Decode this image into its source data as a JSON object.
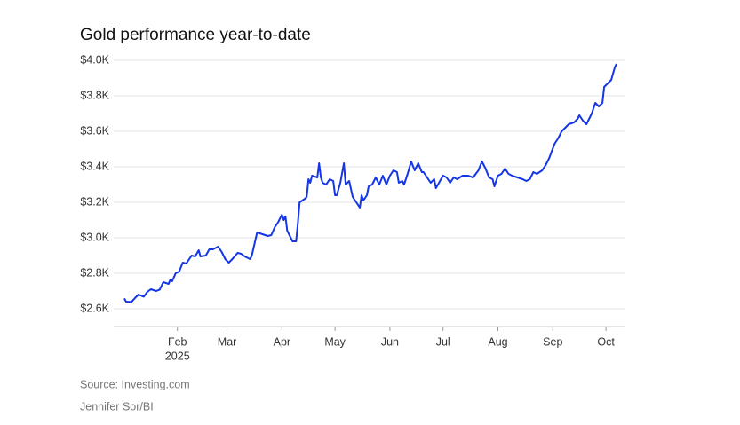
{
  "chart_data": {
    "type": "line",
    "title": "Gold performance year-to-date",
    "source": "Source: Investing.com",
    "credit": "Jennifer Sor/BI",
    "year": "2025",
    "x": [
      2,
      3,
      6,
      8,
      10,
      13,
      15,
      17,
      20,
      22,
      24,
      27,
      28,
      29,
      31,
      33,
      35,
      37,
      38,
      40,
      42,
      44,
      45,
      48,
      50,
      52,
      55,
      57,
      59,
      61,
      63,
      66,
      68,
      70,
      73,
      74,
      77,
      80,
      83,
      85,
      87,
      89,
      90,
      91,
      92,
      93,
      94,
      96,
      97,
      99,
      100,
      101,
      104,
      105,
      106,
      107,
      108,
      111,
      112,
      113,
      114,
      116,
      118,
      120,
      121,
      122,
      124,
      126,
      127,
      129,
      131,
      133,
      135,
      136,
      137,
      139,
      140,
      142,
      144,
      146,
      148,
      150,
      152,
      154,
      156,
      157,
      159,
      160,
      162,
      164,
      166,
      168,
      170,
      171,
      173,
      175,
      177,
      178,
      182,
      184,
      186,
      188,
      190,
      193,
      196,
      199,
      202,
      204,
      206,
      208,
      210,
      211,
      213,
      215,
      217,
      219,
      221,
      224,
      227,
      229,
      231,
      233,
      235,
      238,
      240,
      242,
      245,
      247,
      249,
      251,
      253,
      256,
      258,
      259,
      261,
      263,
      266,
      268,
      270,
      272,
      273,
      275,
      277,
      279,
      280
    ],
    "series": [
      {
        "name": "Gold",
        "color": "#1436e6",
        "values": [
          2658,
          2640,
          2638,
          2660,
          2680,
          2668,
          2695,
          2710,
          2700,
          2708,
          2750,
          2740,
          2765,
          2755,
          2800,
          2810,
          2860,
          2855,
          2870,
          2900,
          2895,
          2930,
          2895,
          2900,
          2935,
          2935,
          2950,
          2920,
          2880,
          2860,
          2880,
          2915,
          2910,
          2895,
          2880,
          2900,
          3030,
          3020,
          3010,
          3015,
          3060,
          3090,
          3110,
          3130,
          3100,
          3120,
          3040,
          3000,
          2980,
          2980,
          3080,
          3200,
          3220,
          3230,
          3330,
          3310,
          3350,
          3340,
          3420,
          3340,
          3310,
          3300,
          3330,
          3320,
          3240,
          3240,
          3310,
          3420,
          3300,
          3320,
          3230,
          3200,
          3170,
          3240,
          3210,
          3240,
          3290,
          3300,
          3340,
          3300,
          3350,
          3300,
          3350,
          3380,
          3370,
          3310,
          3320,
          3300,
          3360,
          3430,
          3380,
          3420,
          3370,
          3370,
          3340,
          3310,
          3330,
          3280,
          3350,
          3340,
          3310,
          3340,
          3330,
          3350,
          3350,
          3340,
          3380,
          3430,
          3390,
          3340,
          3330,
          3290,
          3350,
          3360,
          3390,
          3360,
          3350,
          3340,
          3330,
          3320,
          3330,
          3370,
          3360,
          3380,
          3410,
          3450,
          3530,
          3560,
          3600,
          3620,
          3640,
          3650,
          3670,
          3690,
          3660,
          3640,
          3700,
          3760,
          3740,
          3760,
          3850,
          3870,
          3890,
          3960,
          3980
        ]
      }
    ],
    "xlim": [
      -4,
      285
    ],
    "xticks": [
      {
        "value": 32,
        "label": "Feb"
      },
      {
        "value": 60,
        "label": "Mar"
      },
      {
        "value": 91,
        "label": "Apr"
      },
      {
        "value": 121,
        "label": "May"
      },
      {
        "value": 152,
        "label": "Jun"
      },
      {
        "value": 182,
        "label": "Jul"
      },
      {
        "value": 213,
        "label": "Aug"
      },
      {
        "value": 244,
        "label": "Sep"
      },
      {
        "value": 274,
        "label": "Oct"
      }
    ],
    "ylim": [
      2500,
      4000
    ],
    "yticks": [
      {
        "value": 2600,
        "label": "$2.6K"
      },
      {
        "value": 2800,
        "label": "$2.8K"
      },
      {
        "value": 3000,
        "label": "$3.0K"
      },
      {
        "value": 3200,
        "label": "$3.2K"
      },
      {
        "value": 3400,
        "label": "$3.4K"
      },
      {
        "value": 3600,
        "label": "$3.6K"
      },
      {
        "value": 3800,
        "label": "$3.8K"
      },
      {
        "value": 4000,
        "label": "$4.0K"
      }
    ],
    "grid": true
  }
}
